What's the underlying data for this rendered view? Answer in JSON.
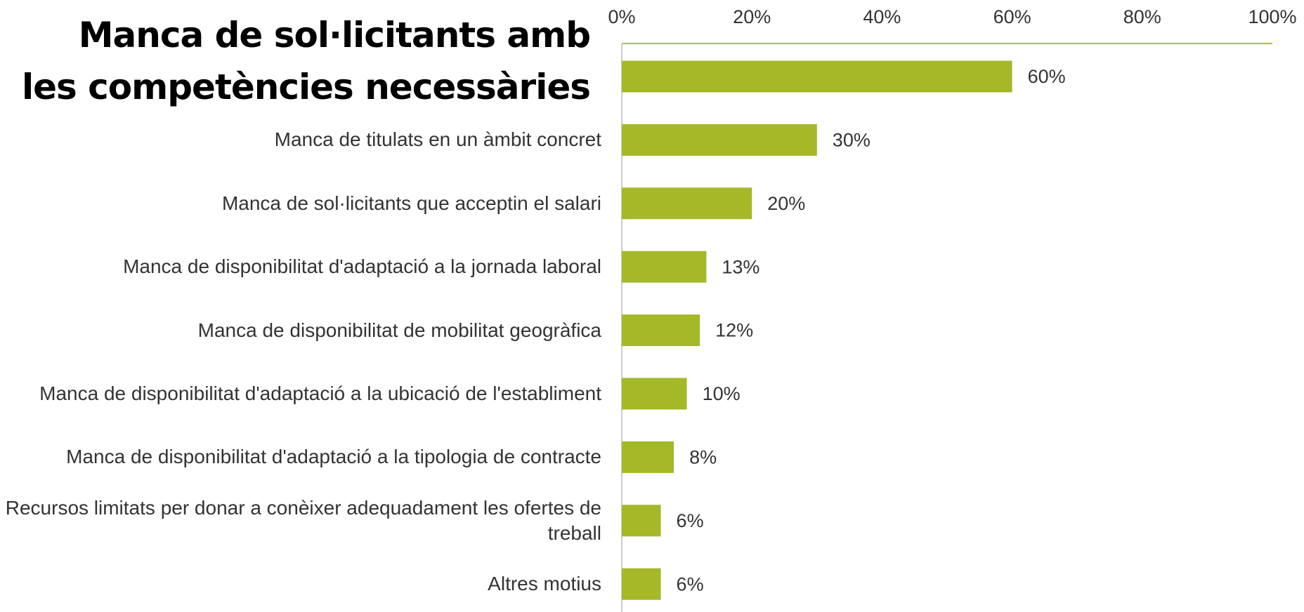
{
  "chart_data": {
    "type": "hbar",
    "categories": [
      "Manca de sol·licitants amb les competències necessàries",
      "Manca de titulats en un àmbit concret",
      "Manca de sol·licitants que acceptin el salari",
      "Manca de disponibilitat d'adaptació a la jornada laboral",
      "Manca de disponibilitat de mobilitat geogràfica",
      "Manca de disponibilitat d'adaptació a la ubicació de l'establiment",
      "Manca de disponibilitat d'adaptació a la tipologia de contracte",
      "Recursos limitats per donar a conèixer adequadament les ofertes de treball",
      "Altres motius"
    ],
    "values": [
      60,
      30,
      20,
      13,
      12,
      10,
      8,
      6,
      6
    ],
    "value_labels": [
      "60%",
      "30%",
      "20%",
      "13%",
      "12%",
      "10%",
      "8%",
      "6%",
      "6%"
    ],
    "color": "#a4b828",
    "xlim": [
      0,
      100
    ],
    "xticks": [
      {
        "value": 0,
        "label": "0%"
      },
      {
        "value": 20,
        "label": "20%"
      },
      {
        "value": 40,
        "label": "40%"
      },
      {
        "value": 60,
        "label": "60%"
      },
      {
        "value": 80,
        "label": "80%"
      },
      {
        "value": 100,
        "label": "100%"
      }
    ]
  }
}
